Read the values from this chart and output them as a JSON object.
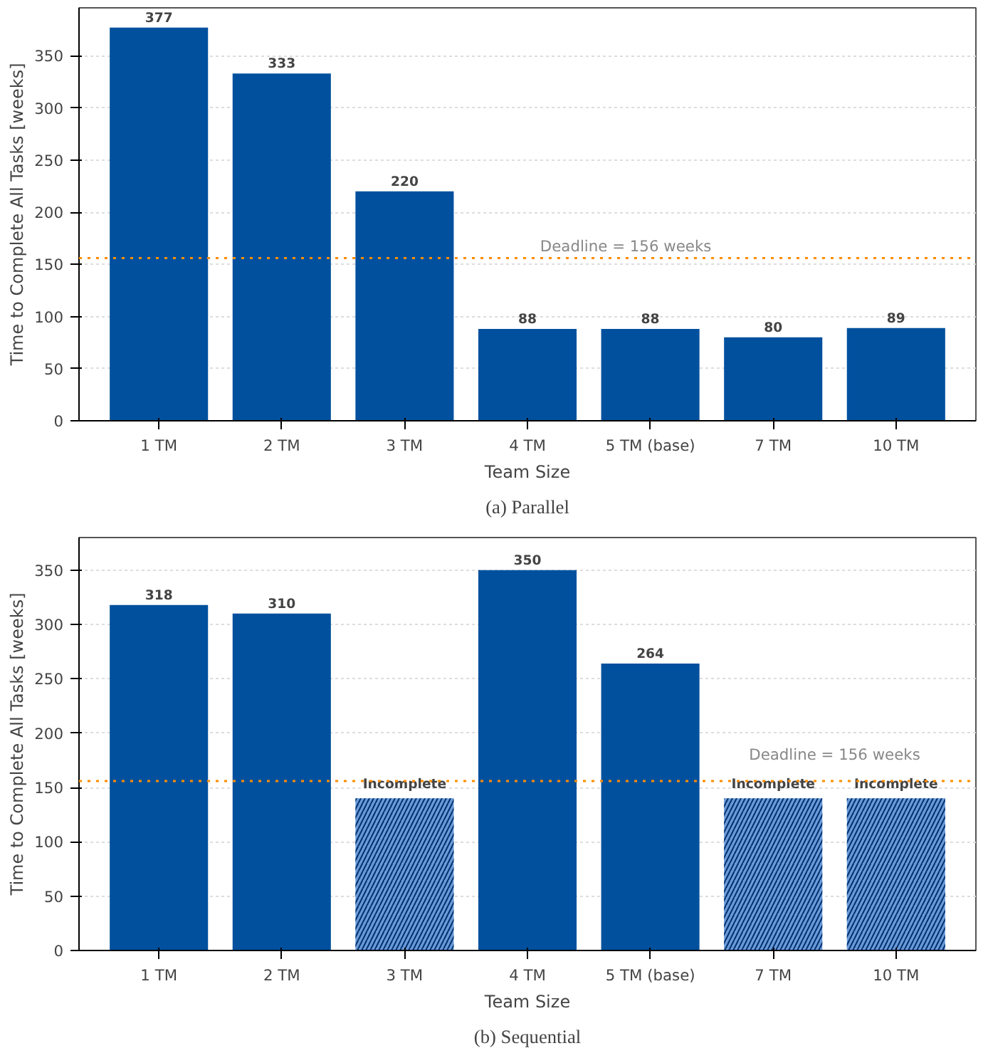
{
  "chart_data": [
    {
      "type": "bar",
      "title": "(a) Parallel",
      "xlabel": "Team Size",
      "ylabel": "Time to Complete All Tasks [weeks]",
      "categories": [
        "1 TM",
        "2 TM",
        "3 TM",
        "4 TM",
        "5 TM (base)",
        "7 TM",
        "10 TM"
      ],
      "values": [
        377,
        333,
        220,
        88,
        88,
        80,
        89
      ],
      "color": "#00509e",
      "data_labels": true,
      "ylim": [
        0,
        396
      ],
      "yticks": [
        0,
        50,
        100,
        150,
        200,
        250,
        300,
        350
      ],
      "grid": "y",
      "ref_lines": [
        {
          "axis": "y",
          "value": 156,
          "label": "Deadline = 156 weeks",
          "color": "#ff8c00",
          "line_style": "dotted"
        }
      ]
    },
    {
      "type": "bar",
      "title": "(b) Sequential",
      "xlabel": "Team Size",
      "ylabel": "Time to Complete All Tasks [weeks]",
      "categories": [
        "1 TM",
        "2 TM",
        "3 TM",
        "4 TM",
        "5 TM (base)",
        "7 TM",
        "10 TM"
      ],
      "values": [
        318,
        310,
        140,
        350,
        264,
        140,
        140
      ],
      "color": "#00509e",
      "colors": [
        "#00509e",
        "#00509e",
        "#6a9ad8",
        "#00509e",
        "#00509e",
        "#6a9ad8",
        "#6a9ad8"
      ],
      "value_labels": [
        "318",
        "310",
        "Incomplete",
        "350",
        "264",
        "Incomplete",
        "Incomplete"
      ],
      "ylim": [
        0,
        380
      ],
      "yticks": [
        0,
        50,
        100,
        150,
        200,
        250,
        300,
        350
      ],
      "grid": "y",
      "ref_lines": [
        {
          "axis": "y",
          "value": 156,
          "label": "Deadline = 156 weeks",
          "color": "#ff8c00",
          "line_style": "dotted"
        }
      ]
    }
  ]
}
